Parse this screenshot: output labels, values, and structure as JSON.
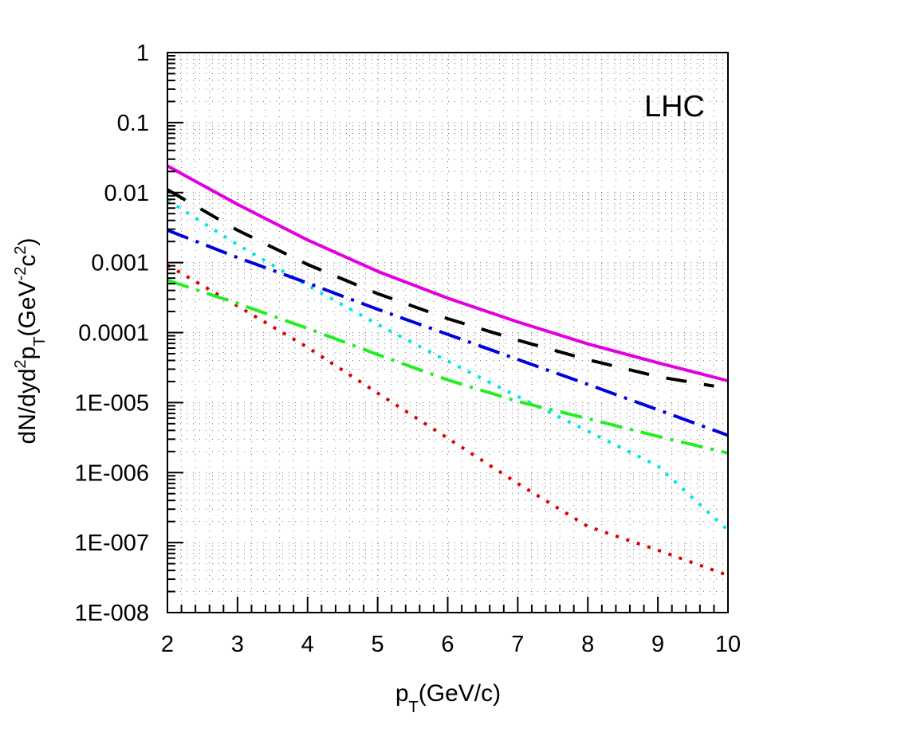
{
  "chart_data": {
    "type": "line",
    "annotation": "LHC",
    "xlabel": {
      "main": "p",
      "sub": "T",
      "rest": "(GeV/c)"
    },
    "ylabel": {
      "p1": "dN/dyd",
      "sup1": "2",
      "p2": "p",
      "sub1": "T",
      "p3": "(GeV",
      "sup2": "-2",
      "p4": "c",
      "sup3": "2",
      "p5": ")"
    },
    "x_scale": "linear",
    "y_scale": "log",
    "xlim": [
      2,
      10
    ],
    "ylim": [
      1e-08,
      1
    ],
    "grid": true,
    "x_ticks": [
      2,
      3,
      4,
      5,
      6,
      7,
      8,
      9,
      10
    ],
    "x_tick_labels": [
      "2",
      "3",
      "4",
      "5",
      "6",
      "7",
      "8",
      "9",
      "10"
    ],
    "y_ticks": [
      1,
      0.1,
      0.01,
      0.001,
      0.0001,
      1e-05,
      1e-06,
      1e-07,
      1e-08
    ],
    "y_tick_labels": [
      "1",
      "0.1",
      "0.01",
      "0.001",
      "0.0001",
      "1E-005",
      "1E-006",
      "1E-007",
      "1E-008"
    ],
    "series": [
      {
        "color": "#e000e0",
        "style": "solid",
        "x": [
          2,
          3,
          4,
          5,
          6,
          7,
          8,
          9,
          10
        ],
        "y": [
          0.024,
          0.0068,
          0.0021,
          0.00075,
          0.00031,
          0.000142,
          6.9e-05,
          3.7e-05,
          2.05e-05
        ]
      },
      {
        "color": "#000000",
        "style": "dash",
        "x": [
          2,
          3,
          4,
          5,
          6,
          7,
          8,
          9,
          9.8
        ],
        "y": [
          0.011,
          0.0029,
          0.00094,
          0.00036,
          0.000158,
          7.8e-05,
          4.1e-05,
          2.35e-05,
          1.72e-05
        ]
      },
      {
        "color": "#00e5e5",
        "style": "dot",
        "x": [
          2,
          3,
          4,
          5,
          6,
          7,
          8,
          9,
          10
        ],
        "y": [
          0.0078,
          0.0018,
          0.00047,
          0.000131,
          3.9e-05,
          1.22e-05,
          3.9e-06,
          1.24e-06,
          1.5e-07
        ]
      },
      {
        "color": "#0000dd",
        "style": "dashdot",
        "x": [
          2,
          3,
          4,
          5,
          6,
          7,
          8,
          9,
          10
        ],
        "y": [
          0.0029,
          0.00118,
          0.00051,
          0.000215,
          9.45e-05,
          4.12e-05,
          1.82e-05,
          7.9e-06,
          3.4e-06
        ]
      },
      {
        "color": "#dd0000",
        "style": "dot",
        "x": [
          2,
          3,
          4,
          5,
          6,
          7,
          8,
          9,
          10
        ],
        "y": [
          0.00092,
          0.00024,
          6.15e-05,
          1.37e-05,
          3.1e-06,
          7e-07,
          1.7e-07,
          7.8e-08,
          3.4e-08
        ]
      },
      {
        "color": "#22ee22",
        "style": "dashdot",
        "x": [
          2,
          3,
          4,
          5,
          6,
          7,
          8,
          9,
          10
        ],
        "y": [
          0.00056,
          0.00026,
          0.000115,
          4.85e-05,
          2.11e-05,
          1.04e-05,
          5.9e-06,
          3.3e-06,
          1.9e-06
        ]
      }
    ]
  }
}
